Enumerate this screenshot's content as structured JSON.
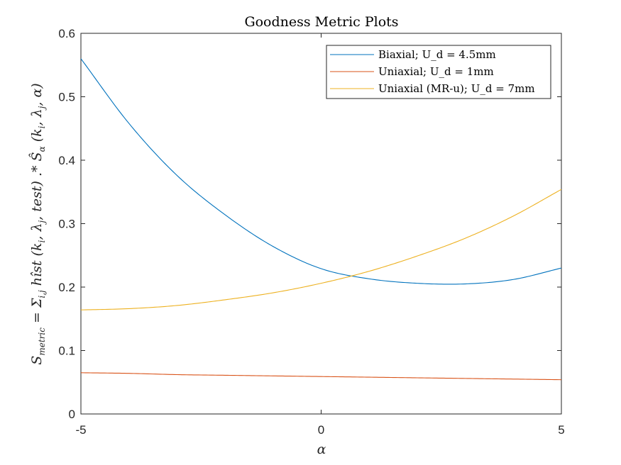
{
  "chart_data": {
    "type": "line",
    "title": "Goodness Metric Plots",
    "xlabel": "α",
    "ylabel": "S_metric = Σ_{i,j} hîst (k_i, λ_j, test) .* Ŝ_α (k_i, λ_j, α)",
    "xlim": [
      -5,
      5
    ],
    "ylim": [
      0,
      0.6
    ],
    "xticks": [
      -5,
      0,
      5
    ],
    "xtick_labels": [
      "-5",
      "0",
      "5"
    ],
    "yticks": [
      0,
      0.1,
      0.2,
      0.3,
      0.4,
      0.5,
      0.6
    ],
    "ytick_labels": [
      "0",
      "0.1",
      "0.2",
      "0.3",
      "0.4",
      "0.5",
      "0.6"
    ],
    "grid": false,
    "legend_position": "top-right",
    "x": [
      -5,
      -4,
      -3,
      -2,
      -1,
      0,
      1,
      2,
      3,
      4,
      5
    ],
    "series": [
      {
        "name": "Biaxial; U_d = 4.5mm",
        "color": "#0072BD",
        "values": [
          0.56,
          0.458,
          0.376,
          0.314,
          0.264,
          0.229,
          0.213,
          0.206,
          0.205,
          0.212,
          0.23
        ]
      },
      {
        "name": "Uniaxial; U_d = 1mm",
        "color": "#D95319",
        "values": [
          0.065,
          0.064,
          0.062,
          0.061,
          0.06,
          0.059,
          0.058,
          0.057,
          0.056,
          0.055,
          0.054
        ]
      },
      {
        "name": "Uniaxial (MR-u); U_d = 7mm",
        "color": "#EDB120",
        "values": [
          0.164,
          0.166,
          0.171,
          0.18,
          0.191,
          0.206,
          0.225,
          0.249,
          0.277,
          0.312,
          0.354
        ]
      }
    ]
  }
}
